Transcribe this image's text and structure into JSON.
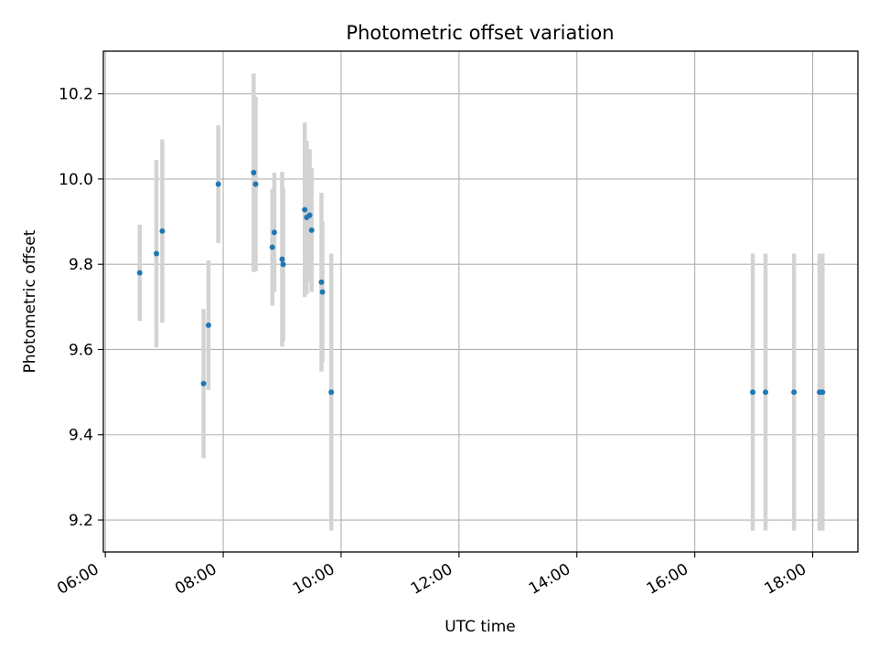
{
  "chart_data": {
    "type": "scatter",
    "title": "Photometric offset variation",
    "xlabel": "UTC time",
    "ylabel": "Photometric offset",
    "x_ticks": [
      "06:00",
      "08:00",
      "10:00",
      "12:00",
      "14:00",
      "16:00",
      "18:00"
    ],
    "y_ticks": [
      "9.2",
      "9.4",
      "9.6",
      "9.8",
      "10.0",
      "10.2"
    ],
    "xlim": [
      "05:58",
      "18:46"
    ],
    "ylim": [
      9.125,
      10.3
    ],
    "grid": true,
    "colors": {
      "marker": "#1f77b4",
      "errorbar": "#d3d3d3",
      "grid": "#b0b0b0"
    },
    "series": [
      {
        "points": [
          {
            "x": "06:35",
            "y": 9.78,
            "yerr": 0.113
          },
          {
            "x": "06:52",
            "y": 9.825,
            "yerr": 0.22
          },
          {
            "x": "06:58",
            "y": 9.878,
            "yerr": 0.215
          },
          {
            "x": "07:40",
            "y": 9.52,
            "yerr": 0.175
          },
          {
            "x": "07:45",
            "y": 9.657,
            "yerr": 0.152
          },
          {
            "x": "07:55",
            "y": 9.988,
            "yerr": 0.138
          },
          {
            "x": "08:31",
            "y": 10.015,
            "yerr": 0.233
          },
          {
            "x": "08:33",
            "y": 9.988,
            "yerr": 0.205
          },
          {
            "x": "08:50",
            "y": 9.84,
            "yerr": 0.137
          },
          {
            "x": "08:52",
            "y": 9.875,
            "yerr": 0.14
          },
          {
            "x": "09:00",
            "y": 9.812,
            "yerr": 0.205
          },
          {
            "x": "09:01",
            "y": 9.8,
            "yerr": 0.18
          },
          {
            "x": "09:23",
            "y": 9.928,
            "yerr": 0.205
          },
          {
            "x": "09:25",
            "y": 9.91,
            "yerr": 0.18
          },
          {
            "x": "09:28",
            "y": 9.915,
            "yerr": 0.155
          },
          {
            "x": "09:30",
            "y": 9.88,
            "yerr": 0.145
          },
          {
            "x": "09:40",
            "y": 9.758,
            "yerr": 0.21
          },
          {
            "x": "09:41",
            "y": 9.735,
            "yerr": 0.165
          },
          {
            "x": "09:50",
            "y": 9.5,
            "yerr": 0.325
          },
          {
            "x": "16:59",
            "y": 9.5,
            "yerr": 0.325
          },
          {
            "x": "17:12",
            "y": 9.5,
            "yerr": 0.325
          },
          {
            "x": "17:41",
            "y": 9.5,
            "yerr": 0.325
          },
          {
            "x": "18:07",
            "y": 9.5,
            "yerr": 0.325
          },
          {
            "x": "18:10",
            "y": 9.5,
            "yerr": 0.325
          }
        ]
      }
    ]
  }
}
